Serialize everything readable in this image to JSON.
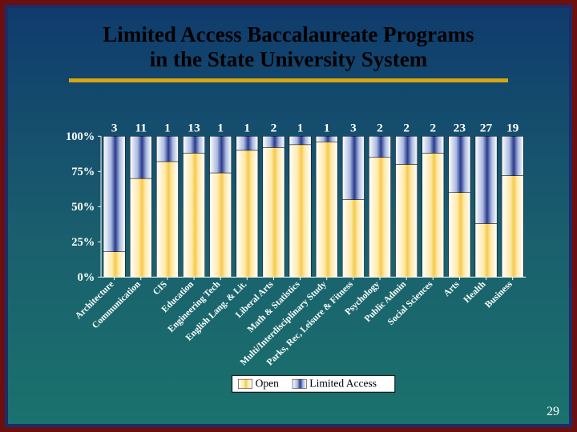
{
  "slide": {
    "number": "29",
    "title_line1": "Limited Access Baccalaureate Programs",
    "title_line2": "in the State University System"
  },
  "chart": {
    "type": "stacked_bar_100pct",
    "categories": [
      "Architecture",
      "Communication",
      "CIS",
      "Education",
      "Engineering Tech",
      "English Lang. & Lit.",
      "Liberal Arts",
      "Math & Statistics",
      "Multi/Interdisciplinary Study",
      "Parks, Rec, Leisure & Fitness",
      "Psychology",
      "Public Admin",
      "Social Sciences",
      "Arts",
      "Health",
      "Business"
    ],
    "data_labels": [
      "3",
      "11",
      "1",
      "13",
      "1",
      "1",
      "2",
      "1",
      "1",
      "3",
      "2",
      "2",
      "2",
      "23",
      "27",
      "19"
    ],
    "open_pct": [
      18,
      70,
      82,
      88,
      74,
      90,
      92,
      94,
      96,
      55,
      85,
      80,
      88,
      60,
      38,
      72
    ],
    "limited_pct": [
      82,
      30,
      18,
      12,
      26,
      10,
      8,
      6,
      4,
      45,
      15,
      20,
      12,
      40,
      62,
      28
    ],
    "series": [
      {
        "name": "Open",
        "stops": [
          {
            "o": "0%",
            "c": "#ffffff"
          },
          {
            "o": "40%",
            "c": "#ffe9a8"
          },
          {
            "o": "55%",
            "c": "#f5c94b"
          },
          {
            "o": "70%",
            "c": "#ffe9a8"
          },
          {
            "o": "100%",
            "c": "#ffffff"
          }
        ]
      },
      {
        "name": "Limited Access",
        "stops": [
          {
            "o": "0%",
            "c": "#ffffff"
          },
          {
            "o": "35%",
            "c": "#a9b9e0"
          },
          {
            "o": "55%",
            "c": "#2a3a8c"
          },
          {
            "o": "75%",
            "c": "#a9b9e0"
          },
          {
            "o": "100%",
            "c": "#ffffff"
          }
        ]
      }
    ],
    "yticks": [
      "0%",
      "25%",
      "50%",
      "75%",
      "100%"
    ],
    "axis": {
      "label_font": "Times New Roman",
      "label_size": 15,
      "label_weight": "bold",
      "label_color": "#ffffff",
      "tick_color": "#ffffff",
      "catlabel_size": 12,
      "catlabel_angle": -45,
      "datalabel_size": 16
    },
    "legend": {
      "text_size": 14,
      "bg": "#ffffff",
      "border": "#000000"
    },
    "plot_bg": "transparent",
    "bar_gap": 0.18,
    "bar_border": "#000000"
  },
  "colors": {
    "outer_border": "#6b0f0f",
    "mid_border": "#1e2b6b",
    "underline": "#d6a60f"
  }
}
